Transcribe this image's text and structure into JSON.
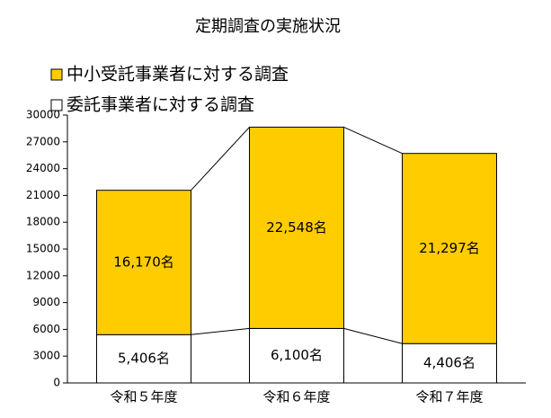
{
  "chart_data": {
    "type": "stacked_bar",
    "title": "定期調査の実施状況",
    "categories": [
      "令和５年度",
      "令和６年度",
      "令和７年度"
    ],
    "series": [
      {
        "name": "委託事業者に対する調査",
        "color": "#ffffff",
        "values": [
          5406,
          6100,
          4406
        ],
        "value_labels": [
          "5,406名",
          "6,100名",
          "4,406名"
        ]
      },
      {
        "name": "中小受託事業者に対する調査",
        "color": "#ffcc00",
        "values": [
          16170,
          22548,
          21297
        ],
        "value_labels": [
          "16,170名",
          "22,548名",
          "21,297名"
        ]
      }
    ],
    "ylim": [
      0,
      30000
    ],
    "yticks": [
      0,
      3000,
      6000,
      9000,
      12000,
      15000,
      18000,
      21000,
      24000,
      27000,
      30000
    ],
    "legend": "top-left",
    "series_lines": true
  }
}
